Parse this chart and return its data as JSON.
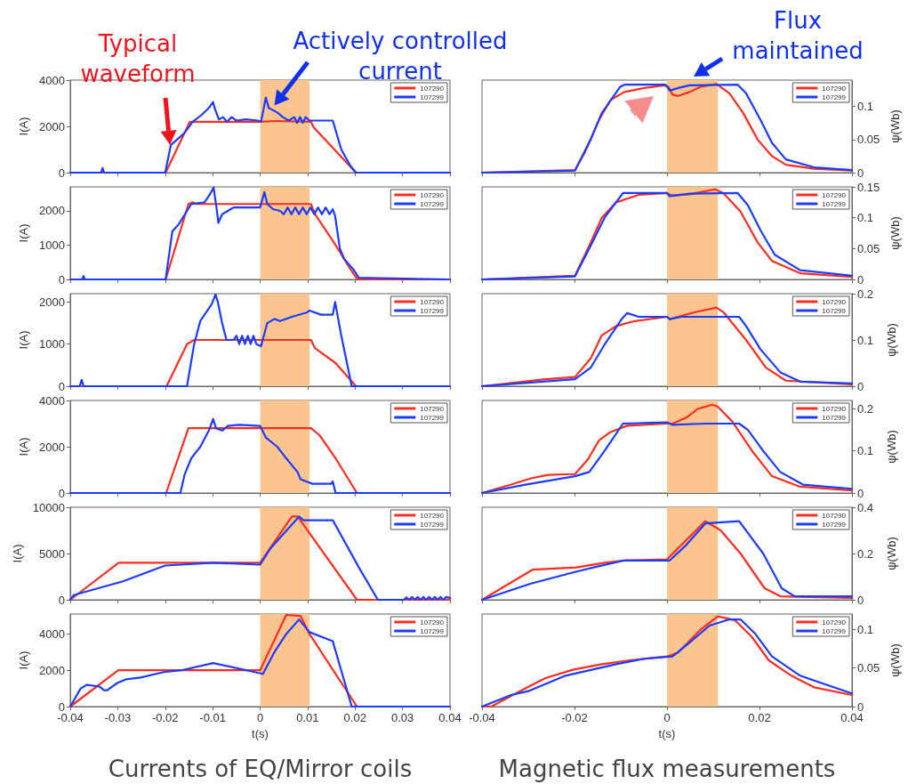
{
  "chart_data": [
    {
      "type": "line",
      "ylabel": "I(A)",
      "ylim": [
        0,
        4000
      ],
      "yticks": [
        0,
        2000,
        4000
      ],
      "xlim": [
        -0.04,
        0.04
      ],
      "xticks": [
        -0.04,
        -0.03,
        -0.02,
        -0.01,
        0,
        0.01,
        0.02,
        0.03,
        0.04
      ],
      "tick_labels": "y",
      "legend": "top right",
      "bands": [
        {
          "axis": "x",
          "from": 0,
          "to": 0.0104,
          "color": "#fcc590"
        }
      ],
      "annotations": [
        {
          "text": "Typical waveform",
          "x": -0.019,
          "y": 1200
        },
        {
          "text": "Actively controlled current",
          "x": 0.003,
          "y": 2900
        }
      ],
      "series": [
        {
          "name": "107290",
          "color": "#ff2d1f",
          "x": [
            -0.04,
            -0.0199,
            -0.0148,
            0,
            0.003,
            0.0107,
            0.0113,
            0.0202,
            0.04
          ],
          "values": [
            0,
            0,
            2200,
            2200,
            2230,
            2200,
            1950,
            0,
            0
          ]
        },
        {
          "name": "107299",
          "color": "#1b3cff",
          "x": [
            -0.04,
            -0.0335,
            -0.0332,
            -0.0329,
            -0.02,
            -0.0188,
            -0.016,
            -0.0142,
            -0.0123,
            -0.0108,
            -0.0099,
            -0.0096,
            -0.0087,
            -0.0078,
            -0.007,
            -0.006,
            -0.005,
            -0.003,
            -0.0005,
            0.0002,
            0.0012,
            0.0018,
            0.0036,
            0.0048,
            0.006,
            0.0072,
            0.0078,
            0.0084,
            0.009,
            0.0096,
            0.0104,
            0.0153,
            0.0171,
            0.019,
            0.0202,
            0.04
          ],
          "values": [
            0,
            0,
            200,
            0,
            0,
            1200,
            1700,
            2200,
            2500,
            2800,
            3050,
            2800,
            2300,
            2400,
            2200,
            2400,
            2250,
            2300,
            2250,
            2200,
            3250,
            2800,
            2600,
            2400,
            2250,
            2400,
            2150,
            2400,
            2150,
            2400,
            2250,
            2250,
            1000,
            300,
            0,
            0
          ]
        }
      ]
    },
    {
      "type": "line",
      "y2label": "ψ(Wb)",
      "y2lim": [
        0,
        0.14
      ],
      "y2ticks": [
        0,
        0.05,
        0.1
      ],
      "xlim": [
        -0.04,
        0.04
      ],
      "xticks": [
        -0.04,
        -0.02,
        0,
        0.02,
        0.04
      ],
      "tick_labels": "y",
      "legend": "top right",
      "bands": [
        {
          "axis": "x",
          "from": 0,
          "to": 0.011,
          "color": "#fcc590"
        }
      ],
      "annotations": [
        "Flux maintained"
      ],
      "series": [
        {
          "name": "107290",
          "color": "#ff2d1f",
          "axis": "y2",
          "x": [
            -0.04,
            -0.0199,
            -0.0178,
            -0.0147,
            -0.0122,
            -0.0092,
            -0.0049,
            -0.0006,
            0.0003,
            0.0012,
            0.0024,
            0.0049,
            0.0073,
            0.0107,
            0.0135,
            0.0165,
            0.0196,
            0.0227,
            0.0257,
            0.0318,
            0.04
          ],
          "values": [
            0,
            0.004,
            0.03,
            0.08,
            0.11,
            0.122,
            0.128,
            0.132,
            0.13,
            0.118,
            0.116,
            0.122,
            0.13,
            0.134,
            0.12,
            0.09,
            0.05,
            0.025,
            0.012,
            0.006,
            0.003
          ]
        },
        {
          "name": "107299",
          "color": "#1b3cff",
          "axis": "y2",
          "x": [
            -0.04,
            -0.0199,
            -0.0165,
            -0.0141,
            -0.0101,
            -0.0092,
            -0.0003,
            0.0006,
            0.0024,
            0.0049,
            0.0153,
            0.0171,
            0.0202,
            0.0227,
            0.0257,
            0.0318,
            0.04
          ],
          "values": [
            0,
            0.003,
            0.05,
            0.09,
            0.13,
            0.133,
            0.133,
            0.124,
            0.128,
            0.132,
            0.133,
            0.12,
            0.08,
            0.045,
            0.02,
            0.008,
            0.004
          ]
        }
      ]
    },
    {
      "type": "line",
      "ylabel": "I(A)",
      "ylim": [
        0,
        2700
      ],
      "yticks": [
        0,
        1000,
        2000
      ],
      "xlim": [
        -0.04,
        0.04
      ],
      "xticks": [
        -0.04,
        -0.03,
        -0.02,
        -0.01,
        0,
        0.01,
        0.02,
        0.03,
        0.04
      ],
      "tick_labels": "y",
      "legend": "top right",
      "bands": [
        {
          "axis": "x",
          "from": 0,
          "to": 0.0104,
          "color": "#fcc590"
        }
      ],
      "series": [
        {
          "name": "107290",
          "color": "#ff2d1f",
          "x": [
            -0.04,
            -0.0199,
            -0.0151,
            -0.0142,
            -0.0135,
            0.0107,
            0.0116,
            0.0159,
            0.019,
            0.0205,
            0.04
          ],
          "values": [
            0,
            0,
            2200,
            2250,
            2200,
            2200,
            1900,
            1000,
            300,
            0,
            0
          ]
        },
        {
          "name": "107299",
          "color": "#1b3cff",
          "x": [
            -0.04,
            -0.0375,
            -0.0372,
            -0.0369,
            -0.0199,
            -0.0185,
            -0.0172,
            -0.0154,
            -0.0145,
            -0.0117,
            -0.0105,
            -0.0098,
            -0.0092,
            -0.0088,
            -0.008,
            -0.0068,
            -0.0056,
            0,
            0.0009,
            0.0015,
            0.0027,
            0.0042,
            0.005,
            0.0058,
            0.0066,
            0.0074,
            0.0082,
            0.009,
            0.0098,
            0.0106,
            0.0114,
            0.0122,
            0.013,
            0.0138,
            0.0146,
            0.0153,
            0.0158,
            0.0168,
            0.0177,
            0.0196,
            0.0208,
            0.04
          ],
          "values": [
            0,
            0,
            100,
            0,
            0,
            1400,
            1600,
            2000,
            2200,
            2250,
            2500,
            2680,
            2100,
            1650,
            1900,
            2000,
            2100,
            2100,
            2550,
            2200,
            2050,
            2000,
            1900,
            2100,
            1900,
            2100,
            1900,
            2100,
            1900,
            2100,
            1900,
            2100,
            1900,
            2100,
            1900,
            2050,
            1850,
            900,
            600,
            300,
            50,
            0
          ]
        }
      ]
    },
    {
      "type": "line",
      "y2label": "ψ(Wb)",
      "y2lim": [
        0,
        0.15
      ],
      "y2ticks": [
        0,
        0.05,
        0.1,
        0.15
      ],
      "xlim": [
        -0.04,
        0.04
      ],
      "xticks": [
        -0.04,
        -0.02,
        0,
        0.02,
        0.04
      ],
      "tick_labels": "y",
      "legend": "top right",
      "bands": [
        {
          "axis": "x",
          "from": 0,
          "to": 0.011,
          "color": "#fcc590"
        }
      ],
      "series": [
        {
          "name": "107290",
          "color": "#ff2d1f",
          "axis": "y2",
          "x": [
            -0.04,
            -0.0199,
            -0.0171,
            -0.0141,
            -0.011,
            -0.0061,
            0,
            0.0009,
            0.0049,
            0.0104,
            0.0122,
            0.0159,
            0.0196,
            0.0227,
            0.0288,
            0.04
          ],
          "values": [
            0,
            0.006,
            0.05,
            0.1,
            0.125,
            0.137,
            0.14,
            0.136,
            0.138,
            0.146,
            0.14,
            0.11,
            0.06,
            0.03,
            0.01,
            0.004
          ]
        },
        {
          "name": "107299",
          "color": "#1b3cff",
          "axis": "y2",
          "x": [
            -0.04,
            -0.0199,
            -0.0168,
            -0.0135,
            -0.0095,
            0,
            0.0006,
            0.0049,
            0.0153,
            0.0175,
            0.0202,
            0.0233,
            0.0288,
            0.04
          ],
          "values": [
            0,
            0.005,
            0.05,
            0.1,
            0.14,
            0.14,
            0.135,
            0.139,
            0.14,
            0.12,
            0.08,
            0.04,
            0.015,
            0.006
          ]
        }
      ]
    },
    {
      "type": "line",
      "ylabel": "I(A)",
      "ylim": [
        0,
        2200
      ],
      "yticks": [
        0,
        1000,
        2000
      ],
      "xlim": [
        -0.04,
        0.04
      ],
      "xticks": [
        -0.04,
        -0.03,
        -0.02,
        -0.01,
        0,
        0.01,
        0.02,
        0.03,
        0.04
      ],
      "tick_labels": "y",
      "legend": "top right",
      "bands": [
        {
          "axis": "x",
          "from": 0,
          "to": 0.0104,
          "color": "#fcc590"
        }
      ],
      "series": [
        {
          "name": "107290",
          "color": "#ff2d1f",
          "x": [
            -0.04,
            -0.0197,
            -0.0154,
            -0.0139,
            0.0107,
            0.0116,
            0.0159,
            0.0202,
            0.04
          ],
          "values": [
            0,
            0,
            1000,
            1100,
            1100,
            900,
            550,
            0,
            0
          ]
        },
        {
          "name": "107299",
          "color": "#1b3cff",
          "x": [
            -0.04,
            -0.038,
            -0.0376,
            -0.0372,
            -0.0154,
            -0.0139,
            -0.0126,
            -0.0111,
            -0.0102,
            -0.0094,
            -0.0089,
            -0.008,
            -0.0071,
            -0.0056,
            -0.005,
            -0.0044,
            -0.0038,
            -0.0032,
            -0.0026,
            -0.002,
            -0.0014,
            -0.0008,
            0.0002,
            0.0015,
            0.003,
            0.0042,
            0.0067,
            0.0098,
            0.0104,
            0.0128,
            0.0153,
            0.0158,
            0.0171,
            0.0193,
            0.04
          ],
          "values": [
            0,
            0,
            150,
            0,
            0,
            1000,
            1550,
            1800,
            1950,
            2180,
            2000,
            1500,
            1100,
            1100,
            1200,
            1000,
            1200,
            1000,
            1200,
            1000,
            1200,
            1000,
            950,
            1500,
            1600,
            1550,
            1650,
            1750,
            1800,
            1700,
            1700,
            2000,
            1200,
            0,
            0
          ]
        }
      ]
    },
    {
      "type": "line",
      "y2label": "ψ(Wb)",
      "y2lim": [
        0,
        0.2
      ],
      "y2ticks": [
        0,
        0.1,
        0.2
      ],
      "xlim": [
        -0.04,
        0.04
      ],
      "xticks": [
        -0.04,
        -0.02,
        0,
        0.02,
        0.04
      ],
      "tick_labels": "y",
      "legend": "top right",
      "bands": [
        {
          "axis": "x",
          "from": 0,
          "to": 0.011,
          "color": "#fcc590"
        }
      ],
      "series": [
        {
          "name": "107290",
          "color": "#ff2d1f",
          "axis": "y2",
          "x": [
            -0.04,
            -0.0263,
            -0.0199,
            -0.0165,
            -0.0141,
            -0.011,
            -0.0073,
            0,
            0.0006,
            0.0061,
            0.0107,
            0.0122,
            0.0171,
            0.0214,
            0.0257,
            0.04
          ],
          "values": [
            0,
            0.015,
            0.02,
            0.06,
            0.11,
            0.13,
            0.14,
            0.15,
            0.145,
            0.16,
            0.17,
            0.16,
            0.1,
            0.04,
            0.012,
            0.004
          ]
        },
        {
          "name": "107299",
          "color": "#1b3cff",
          "axis": "y2",
          "x": [
            -0.04,
            -0.0199,
            -0.0165,
            -0.0135,
            -0.0098,
            -0.0086,
            -0.0061,
            0,
            0.0006,
            0.0031,
            0.0156,
            0.0171,
            0.0202,
            0.0245,
            0.0288,
            0.04
          ],
          "values": [
            0,
            0.015,
            0.04,
            0.09,
            0.145,
            0.158,
            0.15,
            0.15,
            0.145,
            0.15,
            0.15,
            0.13,
            0.08,
            0.03,
            0.01,
            0.006
          ]
        }
      ]
    },
    {
      "type": "line",
      "ylabel": "I(A)",
      "ylim": [
        0,
        4000
      ],
      "yticks": [
        0,
        2000,
        4000
      ],
      "xlim": [
        -0.04,
        0.04
      ],
      "xticks": [
        -0.04,
        -0.03,
        -0.02,
        -0.01,
        0,
        0.01,
        0.02,
        0.03,
        0.04
      ],
      "tick_labels": "y",
      "legend": "top right",
      "bands": [
        {
          "axis": "x",
          "from": 0,
          "to": 0.0104,
          "color": "#fcc590"
        }
      ],
      "series": [
        {
          "name": "107290",
          "color": "#ff2d1f",
          "x": [
            -0.04,
            -0.0198,
            -0.0151,
            0.0107,
            0.0125,
            0.0159,
            0.0204,
            0.04
          ],
          "values": [
            0,
            0,
            2800,
            2800,
            2500,
            1500,
            0,
            0
          ]
        },
        {
          "name": "107299",
          "color": "#1b3cff",
          "x": [
            -0.04,
            -0.0168,
            -0.0159,
            -0.0145,
            -0.0126,
            -0.0108,
            -0.0099,
            -0.0093,
            -0.008,
            -0.0068,
            -0.0044,
            0,
            0.0012,
            0.0036,
            0.0055,
            0.0079,
            0.0085,
            0.0097,
            0.011,
            0.015,
            0.0153,
            0.0159,
            0.04
          ],
          "values": [
            0,
            0,
            800,
            1500,
            2000,
            2700,
            3200,
            2800,
            2700,
            2900,
            2950,
            2900,
            2400,
            2000,
            1500,
            900,
            600,
            500,
            400,
            400,
            500,
            0,
            0
          ]
        }
      ]
    },
    {
      "type": "line",
      "y2label": "ψ(Wb)",
      "y2lim": [
        0,
        0.22
      ],
      "y2ticks": [
        0,
        0.1,
        0.2
      ],
      "xlim": [
        -0.04,
        0.04
      ],
      "xticks": [
        -0.04,
        -0.02,
        0,
        0.02,
        0.04
      ],
      "tick_labels": "y",
      "legend": "top right",
      "bands": [
        {
          "axis": "x",
          "from": 0,
          "to": 0.011,
          "color": "#fcc590"
        }
      ],
      "series": [
        {
          "name": "107290",
          "color": "#ff2d1f",
          "axis": "y2",
          "x": [
            -0.04,
            -0.0337,
            -0.0294,
            -0.0257,
            -0.0199,
            -0.0171,
            -0.0147,
            -0.0122,
            -0.0086,
            0,
            0.0012,
            0.0043,
            0.0067,
            0.0098,
            0.011,
            0.0141,
            0.0184,
            0.0227,
            0.0288,
            0.04
          ],
          "values": [
            0,
            0.02,
            0.035,
            0.043,
            0.045,
            0.08,
            0.125,
            0.145,
            0.16,
            0.165,
            0.165,
            0.18,
            0.2,
            0.21,
            0.205,
            0.17,
            0.1,
            0.04,
            0.015,
            0.006
          ]
        },
        {
          "name": "107299",
          "color": "#1b3cff",
          "axis": "y2",
          "x": [
            -0.04,
            -0.0306,
            -0.0199,
            -0.0168,
            -0.0135,
            -0.0095,
            0,
            0.0012,
            0.0086,
            0.0156,
            0.0175,
            0.0208,
            0.0245,
            0.0294,
            0.04
          ],
          "values": [
            0,
            0.02,
            0.04,
            0.05,
            0.1,
            0.165,
            0.168,
            0.162,
            0.165,
            0.165,
            0.15,
            0.1,
            0.05,
            0.02,
            0.01
          ]
        }
      ]
    },
    {
      "type": "line",
      "ylabel": "I(A)",
      "ylim": [
        0,
        10000
      ],
      "yticks": [
        0,
        5000,
        10000
      ],
      "xlim": [
        -0.04,
        0.04
      ],
      "xticks": [
        -0.04,
        -0.03,
        -0.02,
        -0.01,
        0,
        0.01,
        0.02,
        0.03,
        0.04
      ],
      "tick_labels": "y",
      "legend": "top right",
      "bands": [
        {
          "axis": "x",
          "from": 0,
          "to": 0.0104,
          "color": "#fcc590"
        }
      ],
      "series": [
        {
          "name": "107290",
          "color": "#ff2d1f",
          "x": [
            -0.04,
            -0.0298,
            0,
            0.0067,
            0.0079,
            0.0204,
            0.04
          ],
          "values": [
            0,
            4000,
            4000,
            9000,
            9000,
            0,
            0
          ]
        },
        {
          "name": "107299",
          "color": "#1b3cff",
          "x": [
            -0.04,
            -0.0393,
            -0.0289,
            -0.02,
            -0.0166,
            -0.0099,
            0,
            0.0021,
            0.0082,
            0.0091,
            0.0153,
            0.0208,
            0.0248,
            0.0303,
            0.0308,
            0.0314,
            0.032,
            0.0326,
            0.0332,
            0.0338,
            0.0344,
            0.035,
            0.0356,
            0.0362,
            0.0368,
            0.0374,
            0.038,
            0.0386,
            0.0392,
            0.04
          ],
          "values": [
            0,
            500,
            2000,
            3700,
            3800,
            4000,
            3800,
            5500,
            9000,
            8600,
            8600,
            3500,
            0,
            0,
            250,
            0,
            300,
            0,
            300,
            0,
            300,
            0,
            300,
            0,
            300,
            0,
            300,
            0,
            300,
            200
          ]
        }
      ]
    },
    {
      "type": "line",
      "y2label": "ψ(Wb)",
      "y2lim": [
        0,
        0.4
      ],
      "y2ticks": [
        0,
        0.2,
        0.4
      ],
      "xlim": [
        -0.04,
        0.04
      ],
      "xticks": [
        -0.04,
        -0.02,
        0,
        0.02,
        0.04
      ],
      "tick_labels": "y",
      "legend": "top right",
      "bands": [
        {
          "axis": "x",
          "from": 0,
          "to": 0.011,
          "color": "#fcc590"
        }
      ],
      "series": [
        {
          "name": "107290",
          "color": "#ff2d1f",
          "axis": "y2",
          "x": [
            -0.04,
            -0.0291,
            -0.0196,
            -0.0135,
            -0.0092,
            0,
            0.0083,
            0.0116,
            0.0159,
            0.0211,
            0.0245,
            0.04
          ],
          "values": [
            0,
            0.13,
            0.14,
            0.16,
            0.17,
            0.175,
            0.34,
            0.3,
            0.2,
            0.05,
            0.015,
            0.008
          ]
        },
        {
          "name": "107299",
          "color": "#1b3cff",
          "axis": "y2",
          "x": [
            -0.04,
            -0.0294,
            -0.0199,
            -0.0159,
            -0.0092,
            0.0006,
            0.0043,
            0.0083,
            0.0156,
            0.0208,
            0.0248,
            0.0276,
            0.04
          ],
          "values": [
            0,
            0.07,
            0.12,
            0.14,
            0.17,
            0.17,
            0.24,
            0.33,
            0.34,
            0.2,
            0.05,
            0.015,
            0.015
          ]
        }
      ]
    },
    {
      "type": "line",
      "ylabel": "I(A)",
      "xlabel": "t(s)",
      "ylim": [
        0,
        5100
      ],
      "yticks": [
        0,
        2000,
        4000
      ],
      "xlim": [
        -0.04,
        0.04
      ],
      "xticks": [
        -0.04,
        -0.03,
        -0.02,
        -0.01,
        0,
        0.01,
        0.02,
        0.03,
        0.04
      ],
      "legend": "top right",
      "bands": [
        {
          "axis": "x",
          "from": 0,
          "to": 0.0104,
          "color": "#fcc590"
        }
      ],
      "annotations": [
        "Currents of EQ/Mirror coils"
      ],
      "series": [
        {
          "name": "107290",
          "color": "#ff2d1f",
          "x": [
            -0.04,
            -0.0299,
            0,
            0.0055,
            0.0085,
            0.0104,
            0.0204,
            0.04
          ],
          "values": [
            0,
            2000,
            2000,
            5050,
            5000,
            4000,
            0,
            0
          ]
        },
        {
          "name": "107299",
          "color": "#1b3cff",
          "x": [
            -0.04,
            -0.0378,
            -0.0365,
            -0.0338,
            -0.0329,
            -0.0322,
            -0.0301,
            -0.0283,
            -0.0252,
            -0.0203,
            -0.0166,
            -0.0099,
            0.0006,
            0.003,
            0.0055,
            0.0082,
            0.0104,
            0.0153,
            0.0193,
            0.04
          ],
          "values": [
            0,
            1000,
            1200,
            1100,
            900,
            900,
            1300,
            1500,
            1600,
            1900,
            2000,
            2400,
            1800,
            3000,
            4000,
            4800,
            4100,
            3600,
            0,
            0
          ]
        }
      ]
    },
    {
      "type": "line",
      "xlabel": "t(s)",
      "y2label": "ψ(Wb)",
      "y2lim": [
        0,
        0.12
      ],
      "y2ticks": [
        0,
        0.05,
        0.1
      ],
      "xlim": [
        -0.04,
        0.04
      ],
      "xticks": [
        -0.04,
        -0.02,
        0,
        0.02,
        0.04
      ],
      "legend": "top right",
      "bands": [
        {
          "axis": "x",
          "from": 0,
          "to": 0.011,
          "color": "#fcc590"
        }
      ],
      "annotations": [
        "Magnetic flux measurements"
      ],
      "series": [
        {
          "name": "107290",
          "color": "#ff2d1f",
          "axis": "y2",
          "x": [
            -0.04,
            -0.038,
            -0.0318,
            -0.0263,
            -0.0202,
            -0.0141,
            -0.008,
            0,
            0.0024,
            0.0073,
            0.011,
            0.0147,
            0.0184,
            0.022,
            0.0269,
            0.0318,
            0.04
          ],
          "values": [
            0,
            0,
            0.02,
            0.037,
            0.048,
            0.055,
            0.06,
            0.065,
            0.07,
            0.1,
            0.117,
            0.112,
            0.09,
            0.06,
            0.04,
            0.025,
            0.015
          ]
        },
        {
          "name": "107299",
          "color": "#1b3cff",
          "axis": "y2",
          "x": [
            -0.04,
            -0.0337,
            -0.03,
            -0.022,
            -0.011,
            -0.0049,
            0.0012,
            0.0043,
            0.0092,
            0.0135,
            0.0159,
            0.019,
            0.0227,
            0.0288,
            0.04
          ],
          "values": [
            0,
            0.015,
            0.02,
            0.04,
            0.055,
            0.062,
            0.065,
            0.08,
            0.105,
            0.113,
            0.113,
            0.095,
            0.065,
            0.04,
            0.017
          ]
        }
      ]
    }
  ]
}
